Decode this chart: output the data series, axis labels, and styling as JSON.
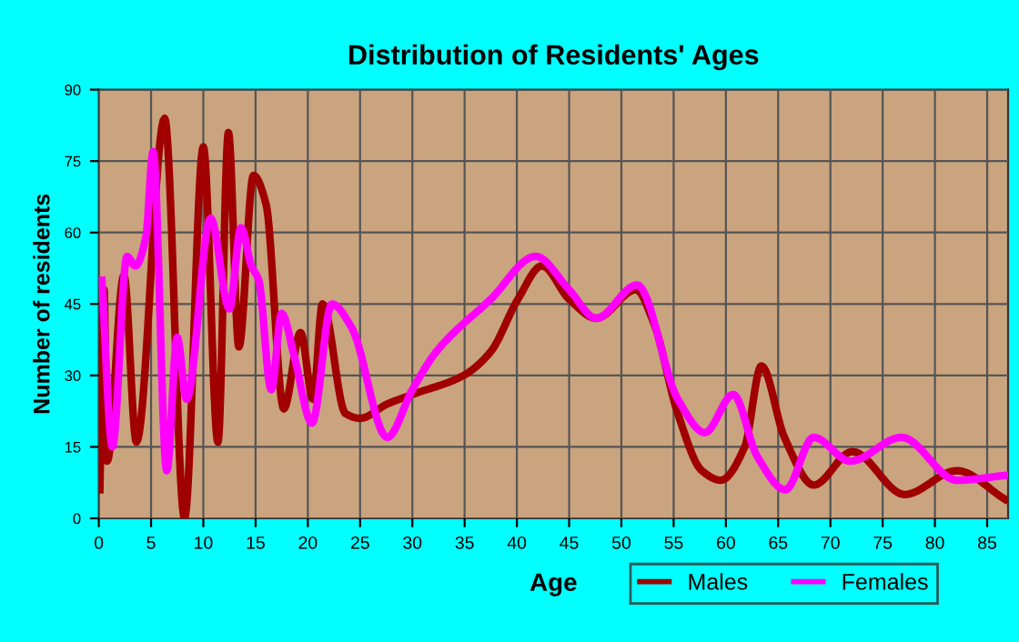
{
  "chart_data": {
    "type": "line",
    "title": "Distribution of Residents' Ages",
    "xlabel": "Age",
    "ylabel": "Number of residents",
    "xlim": [
      0,
      87
    ],
    "xticks": [
      0,
      5,
      10,
      15,
      20,
      25,
      30,
      35,
      40,
      45,
      50,
      55,
      60,
      65,
      70,
      75,
      80,
      85
    ],
    "ylim": [
      0,
      90
    ],
    "yticks": [
      0,
      15,
      30,
      45,
      60,
      75,
      90
    ],
    "grid": true,
    "legend": "bottom right",
    "series": [
      {
        "name": "Males",
        "color": "#a00000",
        "x": [
          0.1,
          0.5,
          0.8,
          2.4,
          3.6,
          6.3,
          8.2,
          10.0,
          11.4,
          12.4,
          13.4,
          14.8,
          16.0,
          17.7,
          19.3,
          20.5,
          21.4,
          23.6,
          25.0,
          27.6,
          30.0,
          34.9,
          37.5,
          40.1,
          42.4,
          45.0,
          47.6,
          51.4,
          53.1,
          55.4,
          57.7,
          59.5,
          61.8,
          63.4,
          65.6,
          68.4,
          72.1,
          77.1,
          82.1,
          86.7
        ],
        "values": [
          6,
          48,
          12,
          51,
          16,
          84,
          0,
          78,
          16,
          81,
          36,
          72,
          66,
          23,
          39,
          25,
          45,
          22,
          21,
          24,
          26,
          30,
          35,
          46,
          53,
          46,
          42,
          48,
          41,
          22,
          10,
          8,
          15,
          32,
          17,
          7,
          14,
          5,
          10,
          4
        ]
      },
      {
        "name": "Females",
        "color": "#ff00ff",
        "x": [
          0.3,
          1.3,
          2.7,
          3.5,
          4.5,
          5.2,
          6.5,
          7.5,
          8.4,
          10.7,
          12.5,
          13.6,
          14.6,
          15.3,
          16.5,
          17.5,
          18.7,
          20.4,
          22.3,
          24.2,
          27.6,
          30.0,
          32.3,
          37.5,
          41.8,
          45.0,
          47.6,
          51.5,
          55.4,
          58.0,
          60.7,
          63.0,
          65.7,
          68.4,
          71.9,
          76.8,
          82.1,
          86.7
        ],
        "values": [
          50,
          15,
          55,
          53,
          59,
          77,
          10,
          38,
          25,
          63,
          44,
          61,
          53,
          50,
          27,
          43,
          34,
          20,
          45,
          40,
          17,
          27,
          35,
          46,
          55,
          48,
          42,
          49,
          25,
          18,
          26,
          13,
          6,
          17,
          12,
          17,
          8,
          9
        ]
      }
    ]
  }
}
